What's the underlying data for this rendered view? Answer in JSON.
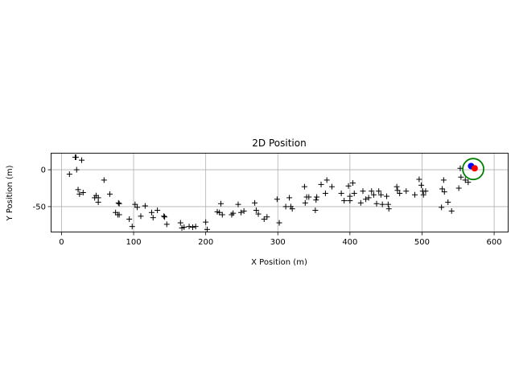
{
  "chart_data": {
    "type": "scatter",
    "title": "2D Position",
    "xlabel": "X Position (m)",
    "ylabel": "Y Position (m)",
    "xlim": [
      -15,
      620
    ],
    "ylim": [
      -85,
      23
    ],
    "xticks": [
      0,
      100,
      200,
      300,
      400,
      500,
      600
    ],
    "yticks": [
      0,
      -50
    ],
    "grid": true,
    "series": [
      {
        "marker": "plus",
        "color": "#000000",
        "points": [
          [
            19,
            17
          ],
          [
            20,
            17
          ],
          [
            28,
            13
          ],
          [
            11,
            -6
          ],
          [
            21,
            0
          ],
          [
            23,
            -27
          ],
          [
            25,
            -33
          ],
          [
            30,
            -31
          ],
          [
            46,
            -38
          ],
          [
            48,
            -35
          ],
          [
            51,
            -38
          ],
          [
            51,
            -44
          ],
          [
            59,
            -14
          ],
          [
            67,
            -33
          ],
          [
            75,
            -58
          ],
          [
            78,
            -61
          ],
          [
            79,
            -45
          ],
          [
            80,
            -46
          ],
          [
            80,
            -61
          ],
          [
            94,
            -67
          ],
          [
            98,
            -77
          ],
          [
            102,
            -47
          ],
          [
            105,
            -51
          ],
          [
            110,
            -63
          ],
          [
            116,
            -49
          ],
          [
            125,
            -58
          ],
          [
            127,
            -65
          ],
          [
            133,
            -55
          ],
          [
            142,
            -63
          ],
          [
            143,
            -64
          ],
          [
            146,
            -74
          ],
          [
            165,
            -72
          ],
          [
            167,
            -79
          ],
          [
            170,
            -78
          ],
          [
            177,
            -77
          ],
          [
            182,
            -78
          ],
          [
            186,
            -77
          ],
          [
            200,
            -71
          ],
          [
            202,
            -81
          ],
          [
            216,
            -57
          ],
          [
            219,
            -58
          ],
          [
            221,
            -46
          ],
          [
            223,
            -61
          ],
          [
            236,
            -61
          ],
          [
            238,
            -59
          ],
          [
            245,
            -47
          ],
          [
            249,
            -58
          ],
          [
            253,
            -56
          ],
          [
            268,
            -45
          ],
          [
            270,
            -55
          ],
          [
            273,
            -60
          ],
          [
            281,
            -67
          ],
          [
            285,
            -64
          ],
          [
            299,
            -40
          ],
          [
            302,
            -72
          ],
          [
            311,
            -50
          ],
          [
            316,
            -38
          ],
          [
            318,
            -50
          ],
          [
            320,
            -53
          ],
          [
            337,
            -23
          ],
          [
            338,
            -45
          ],
          [
            340,
            -37
          ],
          [
            343,
            -37
          ],
          [
            352,
            -55
          ],
          [
            353,
            -41
          ],
          [
            354,
            -37
          ],
          [
            360,
            -20
          ],
          [
            366,
            -32
          ],
          [
            368,
            -14
          ],
          [
            375,
            -23
          ],
          [
            388,
            -32
          ],
          [
            392,
            -42
          ],
          [
            398,
            -22
          ],
          [
            400,
            -36
          ],
          [
            400,
            -42
          ],
          [
            404,
            -18
          ],
          [
            406,
            -32
          ],
          [
            415,
            -45
          ],
          [
            418,
            -29
          ],
          [
            422,
            -40
          ],
          [
            426,
            -38
          ],
          [
            430,
            -29
          ],
          [
            433,
            -34
          ],
          [
            437,
            -46
          ],
          [
            440,
            -29
          ],
          [
            443,
            -34
          ],
          [
            445,
            -47
          ],
          [
            451,
            -36
          ],
          [
            453,
            -47
          ],
          [
            454,
            -53
          ],
          [
            465,
            -23
          ],
          [
            466,
            -28
          ],
          [
            469,
            -32
          ],
          [
            478,
            -29
          ],
          [
            490,
            -34
          ],
          [
            496,
            -13
          ],
          [
            499,
            -21
          ],
          [
            501,
            -29
          ],
          [
            502,
            -34
          ],
          [
            505,
            -29
          ],
          [
            527,
            -51
          ],
          [
            528,
            -26
          ],
          [
            530,
            -14
          ],
          [
            531,
            -30
          ],
          [
            536,
            -44
          ],
          [
            541,
            -56
          ],
          [
            551,
            -25
          ],
          [
            553,
            2
          ],
          [
            554,
            -10
          ],
          [
            560,
            -14
          ],
          [
            564,
            -17
          ]
        ]
      },
      {
        "marker": "dot",
        "color": "#0000ff",
        "points": [
          [
            568,
            5
          ]
        ]
      },
      {
        "marker": "dot",
        "color": "#ff0000",
        "points": [
          [
            573,
            2
          ]
        ]
      },
      {
        "marker": "circle",
        "color": "#008000",
        "points": [
          [
            571,
            1
          ]
        ]
      }
    ]
  }
}
